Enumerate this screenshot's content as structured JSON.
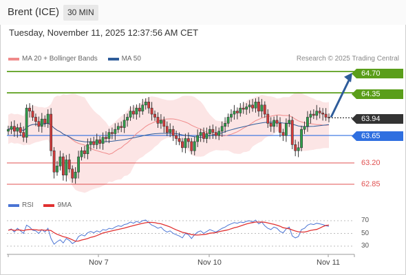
{
  "header": {
    "instrument": "Brent (ICE)",
    "timeframe": "30 MIN",
    "timestamp": "Tuesday, November 11, 2025 12:37:56 AM CET"
  },
  "legend": {
    "ma20_label": "MA 20 + Bollinger Bands",
    "ma50_label": "MA 50",
    "ma20_color": "#f08a8a",
    "ma50_color": "#2e5c9a",
    "credit": "Research © 2025 Trading Central"
  },
  "levels": {
    "r2": "64.70",
    "r1": "64.35",
    "last": "63.94",
    "pivot": "63.65",
    "s1": "63.20",
    "s2": "62.85",
    "resistance_color": "#5a9e1a",
    "pivot_color": "#2f6fe0",
    "support_color": "#e05050",
    "last_color": "#333333"
  },
  "rsi": {
    "rsi_label": "RSI",
    "ma_label": "9MA",
    "rsi_color": "#4a74d4",
    "ma_color": "#e03030",
    "scale": [
      "70",
      "50",
      "30"
    ]
  },
  "x_axis": {
    "labels": [
      "Nov 7",
      "Nov 10",
      "Nov 11"
    ]
  },
  "chart_data": {
    "type": "candlestick",
    "price_scale": {
      "min": 62.75,
      "max": 64.9
    },
    "levels": [
      64.7,
      64.35,
      63.94,
      63.65,
      63.2,
      62.85
    ],
    "closes": [
      63.75,
      63.8,
      63.72,
      63.78,
      63.7,
      63.62,
      64.1,
      64.05,
      63.95,
      63.88,
      63.8,
      63.92,
      63.85,
      64.0,
      63.4,
      63.05,
      63.15,
      63.3,
      63.0,
      63.25,
      63.1,
      62.95,
      63.05,
      63.3,
      63.4,
      63.35,
      63.5,
      63.55,
      63.5,
      63.58,
      63.52,
      63.62,
      63.6,
      63.7,
      63.68,
      63.75,
      63.8,
      63.78,
      63.9,
      63.95,
      64.05,
      64.0,
      64.1,
      64.05,
      64.15,
      64.2,
      64.1,
      64.0,
      63.95,
      63.85,
      63.9,
      63.8,
      63.7,
      63.75,
      63.65,
      63.6,
      63.55,
      63.45,
      63.6,
      63.55,
      63.4,
      63.55,
      63.65,
      63.7,
      63.6,
      63.68,
      63.75,
      63.7,
      63.65,
      63.72,
      63.8,
      63.85,
      63.95,
      64.0,
      64.05,
      64.02,
      64.1,
      64.08,
      64.12,
      64.15,
      64.1,
      64.2,
      64.05,
      64.15,
      64.0,
      63.85,
      63.8,
      63.9,
      63.85,
      63.7,
      63.65,
      63.85,
      63.9,
      63.5,
      63.4,
      63.45,
      63.75,
      63.8,
      63.95,
      64.0,
      63.98,
      64.05,
      64.02,
      64.0,
      63.95,
      63.94
    ],
    "rsi": [
      55,
      57,
      52,
      58,
      54,
      50,
      63,
      60,
      55,
      54,
      50,
      56,
      52,
      58,
      42,
      33,
      37,
      40,
      35,
      42,
      39,
      34,
      37,
      45,
      48,
      46,
      51,
      53,
      51,
      54,
      52,
      56,
      55,
      58,
      57,
      60,
      62,
      61,
      64,
      65,
      68,
      66,
      69,
      67,
      70,
      71,
      67,
      63,
      61,
      58,
      60,
      55,
      52,
      54,
      50,
      48,
      46,
      43,
      50,
      48,
      42,
      48,
      52,
      54,
      50,
      53,
      56,
      54,
      52,
      55,
      58,
      60,
      63,
      65,
      67,
      66,
      68,
      67,
      69,
      70,
      68,
      71,
      65,
      68,
      62,
      58,
      56,
      60,
      58,
      53,
      51,
      57,
      60,
      46,
      43,
      45,
      56,
      58,
      63,
      65,
      64,
      66,
      65,
      64,
      62,
      61
    ],
    "rsi_range": [
      30,
      70
    ]
  }
}
